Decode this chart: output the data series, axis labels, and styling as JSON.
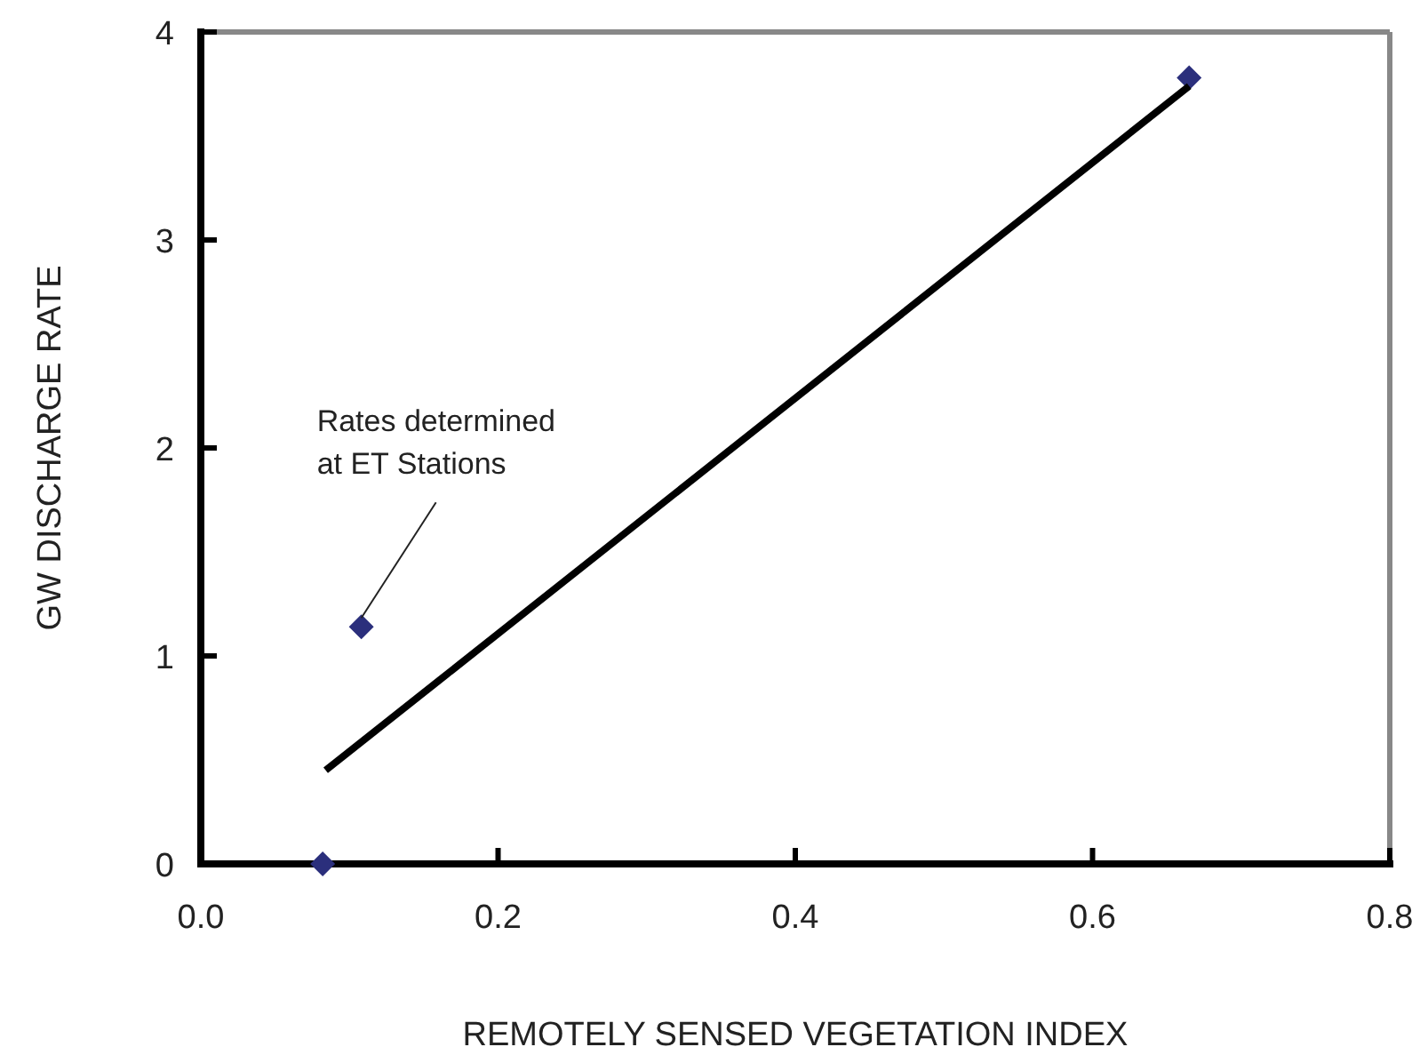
{
  "chart_data": {
    "type": "scatter",
    "xlabel": "REMOTELY SENSED VEGETATION INDEX",
    "ylabel": "GW DISCHARGE RATE",
    "xlim": [
      0,
      0.8
    ],
    "xticks": [
      {
        "value": 0,
        "label": "0.0"
      },
      0.2,
      0.4,
      0.6,
      0.8
    ],
    "ylim": [
      0,
      4
    ],
    "yticks": [
      0,
      1,
      2,
      3,
      4
    ],
    "grid": false,
    "marker": "diamond",
    "series": [
      {
        "color": "#2b2f7c",
        "x": [
          0.082,
          0.108,
          0.665
        ],
        "values": [
          0,
          1.14,
          3.78
        ]
      },
      {
        "type": "line",
        "color": "#000000",
        "x": [
          0.084,
          0.665
        ],
        "values": [
          0.45,
          3.74
        ],
        "marker": "none",
        "line_style": "solid"
      }
    ],
    "annotations": [
      {
        "text": "Rates determined\nat ET Stations",
        "x": 0.108,
        "y": 1.14
      }
    ]
  }
}
